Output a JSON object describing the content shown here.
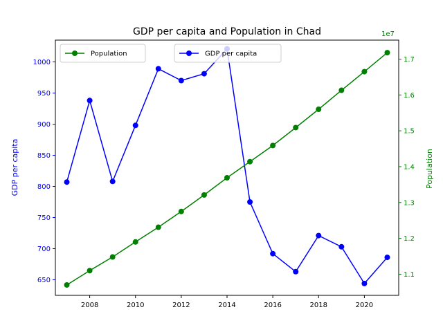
{
  "chart_data": {
    "type": "line",
    "title": "GDP per capita and Population in Chad",
    "x": [
      2007,
      2008,
      2009,
      2010,
      2011,
      2012,
      2013,
      2014,
      2015,
      2016,
      2017,
      2018,
      2019,
      2020,
      2021
    ],
    "xlim": [
      2006.5,
      2021.5
    ],
    "xticks": [
      "2008",
      "2010",
      "2012",
      "2014",
      "2016",
      "2018",
      "2020"
    ],
    "series": [
      {
        "name": "GDP per capita",
        "axis": "left",
        "color": "#0000ff",
        "values": [
          807,
          938,
          808,
          898,
          989,
          970,
          981,
          1021,
          775,
          692,
          663,
          721,
          703,
          644,
          686
        ]
      },
      {
        "name": "Population",
        "axis": "right",
        "color": "#008000",
        "values": [
          10700000,
          11100000,
          11480000,
          11900000,
          12310000,
          12750000,
          13210000,
          13690000,
          14140000,
          14590000,
          15090000,
          15600000,
          16130000,
          16650000,
          17180000
        ]
      }
    ],
    "ylabel": "GDP per capita",
    "ylim": [
      625,
      1035
    ],
    "yticks": [
      "650",
      "700",
      "750",
      "800",
      "850",
      "900",
      "950",
      "1000"
    ],
    "y2label": "Population",
    "y2lim": [
      10410000,
      17530000
    ],
    "y2ticks": [
      "1.1",
      "1.2",
      "1.3",
      "1.4",
      "1.5",
      "1.6",
      "1.7"
    ],
    "y2offset": "1e7",
    "legends": [
      {
        "entries": [
          "Population"
        ]
      },
      {
        "entries": [
          "GDP per capita"
        ]
      }
    ]
  }
}
